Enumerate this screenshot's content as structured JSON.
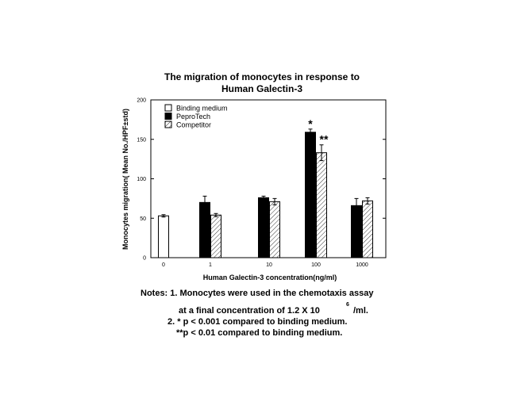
{
  "chart_data": {
    "type": "bar",
    "title_line1": "The migration of monocytes in response to",
    "title_line2": "Human Galectin-3",
    "xlabel": "Human Galectin-3 concentration(ng/ml)",
    "ylabel": "Monocytes migration( Mean No./HPF±std)",
    "ylim": [
      0,
      200
    ],
    "yticks": [
      "0",
      "50",
      "100",
      "150",
      "200"
    ],
    "categories": [
      "0",
      "1",
      "10",
      "100",
      "1000"
    ],
    "legend_position": "top-left",
    "series": [
      {
        "name": "Binding medium",
        "fill": "#ffffff",
        "values": [
          53,
          null,
          null,
          null,
          null
        ],
        "errors": [
          1.5,
          null,
          null,
          null,
          null
        ]
      },
      {
        "name": "PeproTech",
        "fill": "#000000",
        "values": [
          null,
          70,
          76,
          159,
          66
        ],
        "errors": [
          null,
          8,
          2,
          4,
          9
        ]
      },
      {
        "name": "Competitor",
        "fill": "hatch",
        "values": [
          null,
          54,
          null,
          133,
          72
        ],
        "errors": [
          null,
          2,
          null,
          10,
          4
        ]
      }
    ],
    "extra_bars": [
      {
        "category": "10",
        "series": "Competitor",
        "value": 71,
        "error": 4
      }
    ],
    "annotations": [
      {
        "text": "*",
        "category": "100",
        "series": "PeproTech"
      },
      {
        "text": "**",
        "category": "100",
        "series": "Competitor"
      }
    ]
  },
  "notes": {
    "line1": "Notes: 1. Monocytes were used in the chemotaxis assay",
    "line2": "at a final concentration of 1.2 X 10",
    "line2_sup": "6",
    "line2_end": "/ml.",
    "line3": "2. * p < 0.001 compared to binding medium.",
    "line4": "**p < 0.01 compared to binding medium."
  }
}
